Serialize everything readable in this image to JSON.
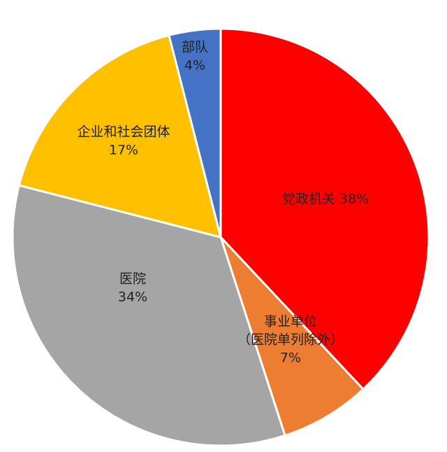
{
  "chart_data": {
    "type": "pie",
    "title": "",
    "start_angle_deg": 0,
    "direction": "clockwise",
    "slices": [
      {
        "label_lines": [
          "党政机关 38%"
        ],
        "value": 38,
        "color": "#FF0000"
      },
      {
        "label_lines": [
          "事业单位",
          "（医院单列除外）",
          "7%"
        ],
        "value": 7,
        "color": "#ED7D31"
      },
      {
        "label_lines": [
          "医院",
          "34%"
        ],
        "value": 34,
        "color": "#A5A5A5"
      },
      {
        "label_lines": [
          "企业和社会团体",
          "17%"
        ],
        "value": 17,
        "color": "#FFC000"
      },
      {
        "label_lines": [
          "部队",
          "4%"
        ],
        "value": 4,
        "color": "#4472C4"
      }
    ]
  }
}
